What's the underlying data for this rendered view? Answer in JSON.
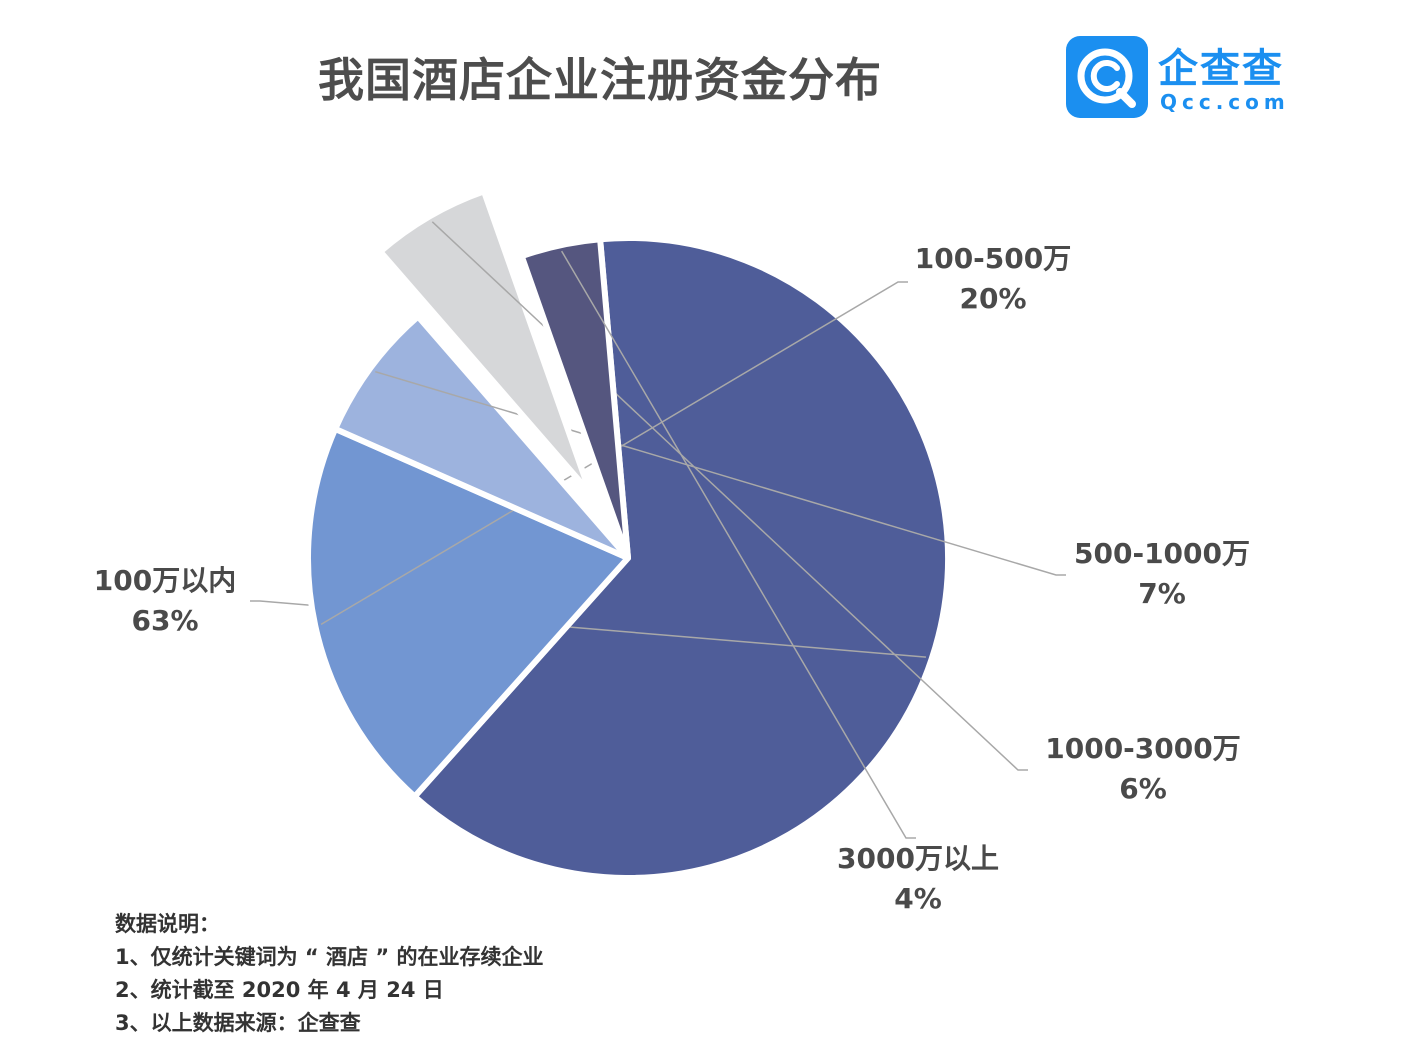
{
  "header": {
    "title": "我国酒店企业注册资金分布",
    "logo_cn": "企查查",
    "logo_en": "Qcc.com"
  },
  "chart_data": {
    "type": "pie",
    "title": "我国酒店企业注册资金分布",
    "categories": [
      "100万以内",
      "100-500万",
      "500-1000万",
      "1000-3000万",
      "3000万以上"
    ],
    "values": [
      63,
      20,
      7,
      6,
      4
    ],
    "value_labels": [
      "63%",
      "20%",
      "7%",
      "6%",
      "4%"
    ],
    "colors": [
      "#4f5d99",
      "#7296d2",
      "#9db3de",
      "#d6d7d9",
      "#55567f"
    ],
    "exploded": [
      false,
      false,
      false,
      true,
      false
    ]
  },
  "notes": {
    "heading": "数据说明：",
    "items": [
      "1、仅统计关键词为 “ 酒店 ” 的在业存续企业",
      "2、统计截至 2020 年 4 月 24 日",
      "3、以上数据来源：企查查"
    ]
  },
  "colors": {
    "brand": "#1b8ff0",
    "text": "#4a4a4a"
  }
}
